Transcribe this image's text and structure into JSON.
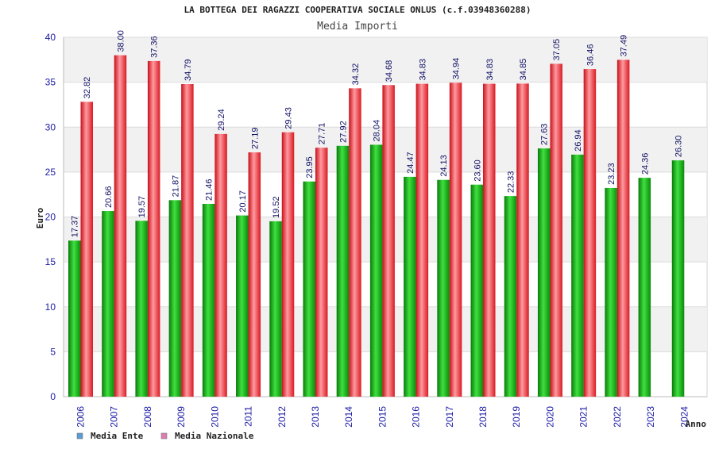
{
  "chart_data": {
    "type": "bar",
    "title": "LA BOTTEGA DEI RAGAZZI COOPERATIVA SOCIALE ONLUS (c.f.03948360288)",
    "subtitle": "Media Importi",
    "ylabel": "Euro",
    "xlabel": "Anno",
    "ylim": [
      0,
      40
    ],
    "yticks": [
      0,
      5,
      10,
      15,
      20,
      25,
      30,
      35,
      40
    ],
    "categories": [
      "2006",
      "2007",
      "2008",
      "2009",
      "2010",
      "2011",
      "2012",
      "2013",
      "2014",
      "2015",
      "2016",
      "2017",
      "2018",
      "2019",
      "2020",
      "2021",
      "2022",
      "2023",
      "2024"
    ],
    "series": [
      {
        "name": "Media Ente",
        "color": "#1aaa1a",
        "values": [
          17.37,
          20.66,
          19.57,
          21.87,
          21.46,
          20.17,
          19.52,
          23.95,
          27.92,
          28.04,
          24.47,
          24.13,
          23.6,
          22.33,
          27.63,
          26.94,
          23.23,
          24.36,
          26.3
        ],
        "labels": [
          "17.37",
          "20.66",
          "19.57",
          "21.87",
          "21.46",
          "20.17",
          "19.52",
          "23.95",
          "27.92",
          "28.04",
          "24.47",
          "24.13",
          "23.60",
          "22.33",
          "27.63",
          "26.94",
          "23.23",
          "24.36",
          "26.30"
        ]
      },
      {
        "name": "Media Nazionale",
        "color": "#e8202a",
        "values": [
          32.82,
          38.0,
          37.36,
          34.79,
          29.24,
          27.19,
          29.43,
          27.71,
          34.32,
          34.68,
          34.83,
          34.94,
          34.83,
          34.85,
          37.05,
          36.46,
          37.49,
          null,
          null
        ],
        "labels": [
          "32.82",
          "38.00",
          "37.36",
          "34.79",
          "29.24",
          "27.19",
          "29.43",
          "27.71",
          "34.32",
          "34.68",
          "34.83",
          "34.94",
          "34.83",
          "34.85",
          "37.05",
          "36.46",
          "37.49",
          null,
          null
        ]
      }
    ],
    "legend": [
      {
        "name": "Media Ente",
        "color": "#5b9bd5"
      },
      {
        "name": "Media Nazionale",
        "color": "#e07bb0"
      }
    ],
    "legend_position": "bottom-left",
    "grid": true
  }
}
